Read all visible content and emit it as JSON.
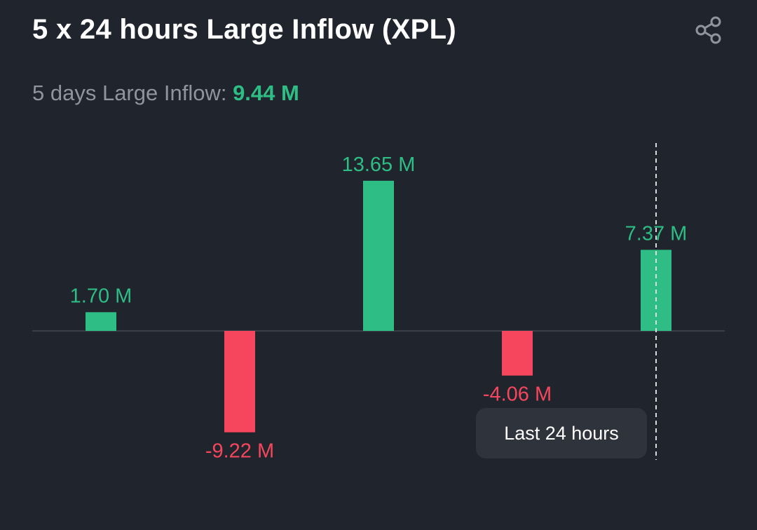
{
  "header": {
    "title": "5 x 24 hours Large Inflow (XPL)",
    "share_icon": "share-icon"
  },
  "summary": {
    "label": "5 days Large Inflow: ",
    "value": "9.44 M"
  },
  "tooltip": {
    "label": "Last 24 hours"
  },
  "colors": {
    "positive": "#2ebd85",
    "negative": "#f6465d",
    "background": "#20242c",
    "baseline": "#3a3f48"
  },
  "chart_data": {
    "type": "bar",
    "title": "",
    "xlabel": "",
    "ylabel": "",
    "unit": "M",
    "values": [
      1.7,
      -9.22,
      13.65,
      -4.06,
      7.37
    ],
    "labels": [
      "1.70 M",
      "-9.22 M",
      "13.65 M",
      "-4.06 M",
      "7.37 M"
    ],
    "highlight_index": 4,
    "grid": false
  }
}
